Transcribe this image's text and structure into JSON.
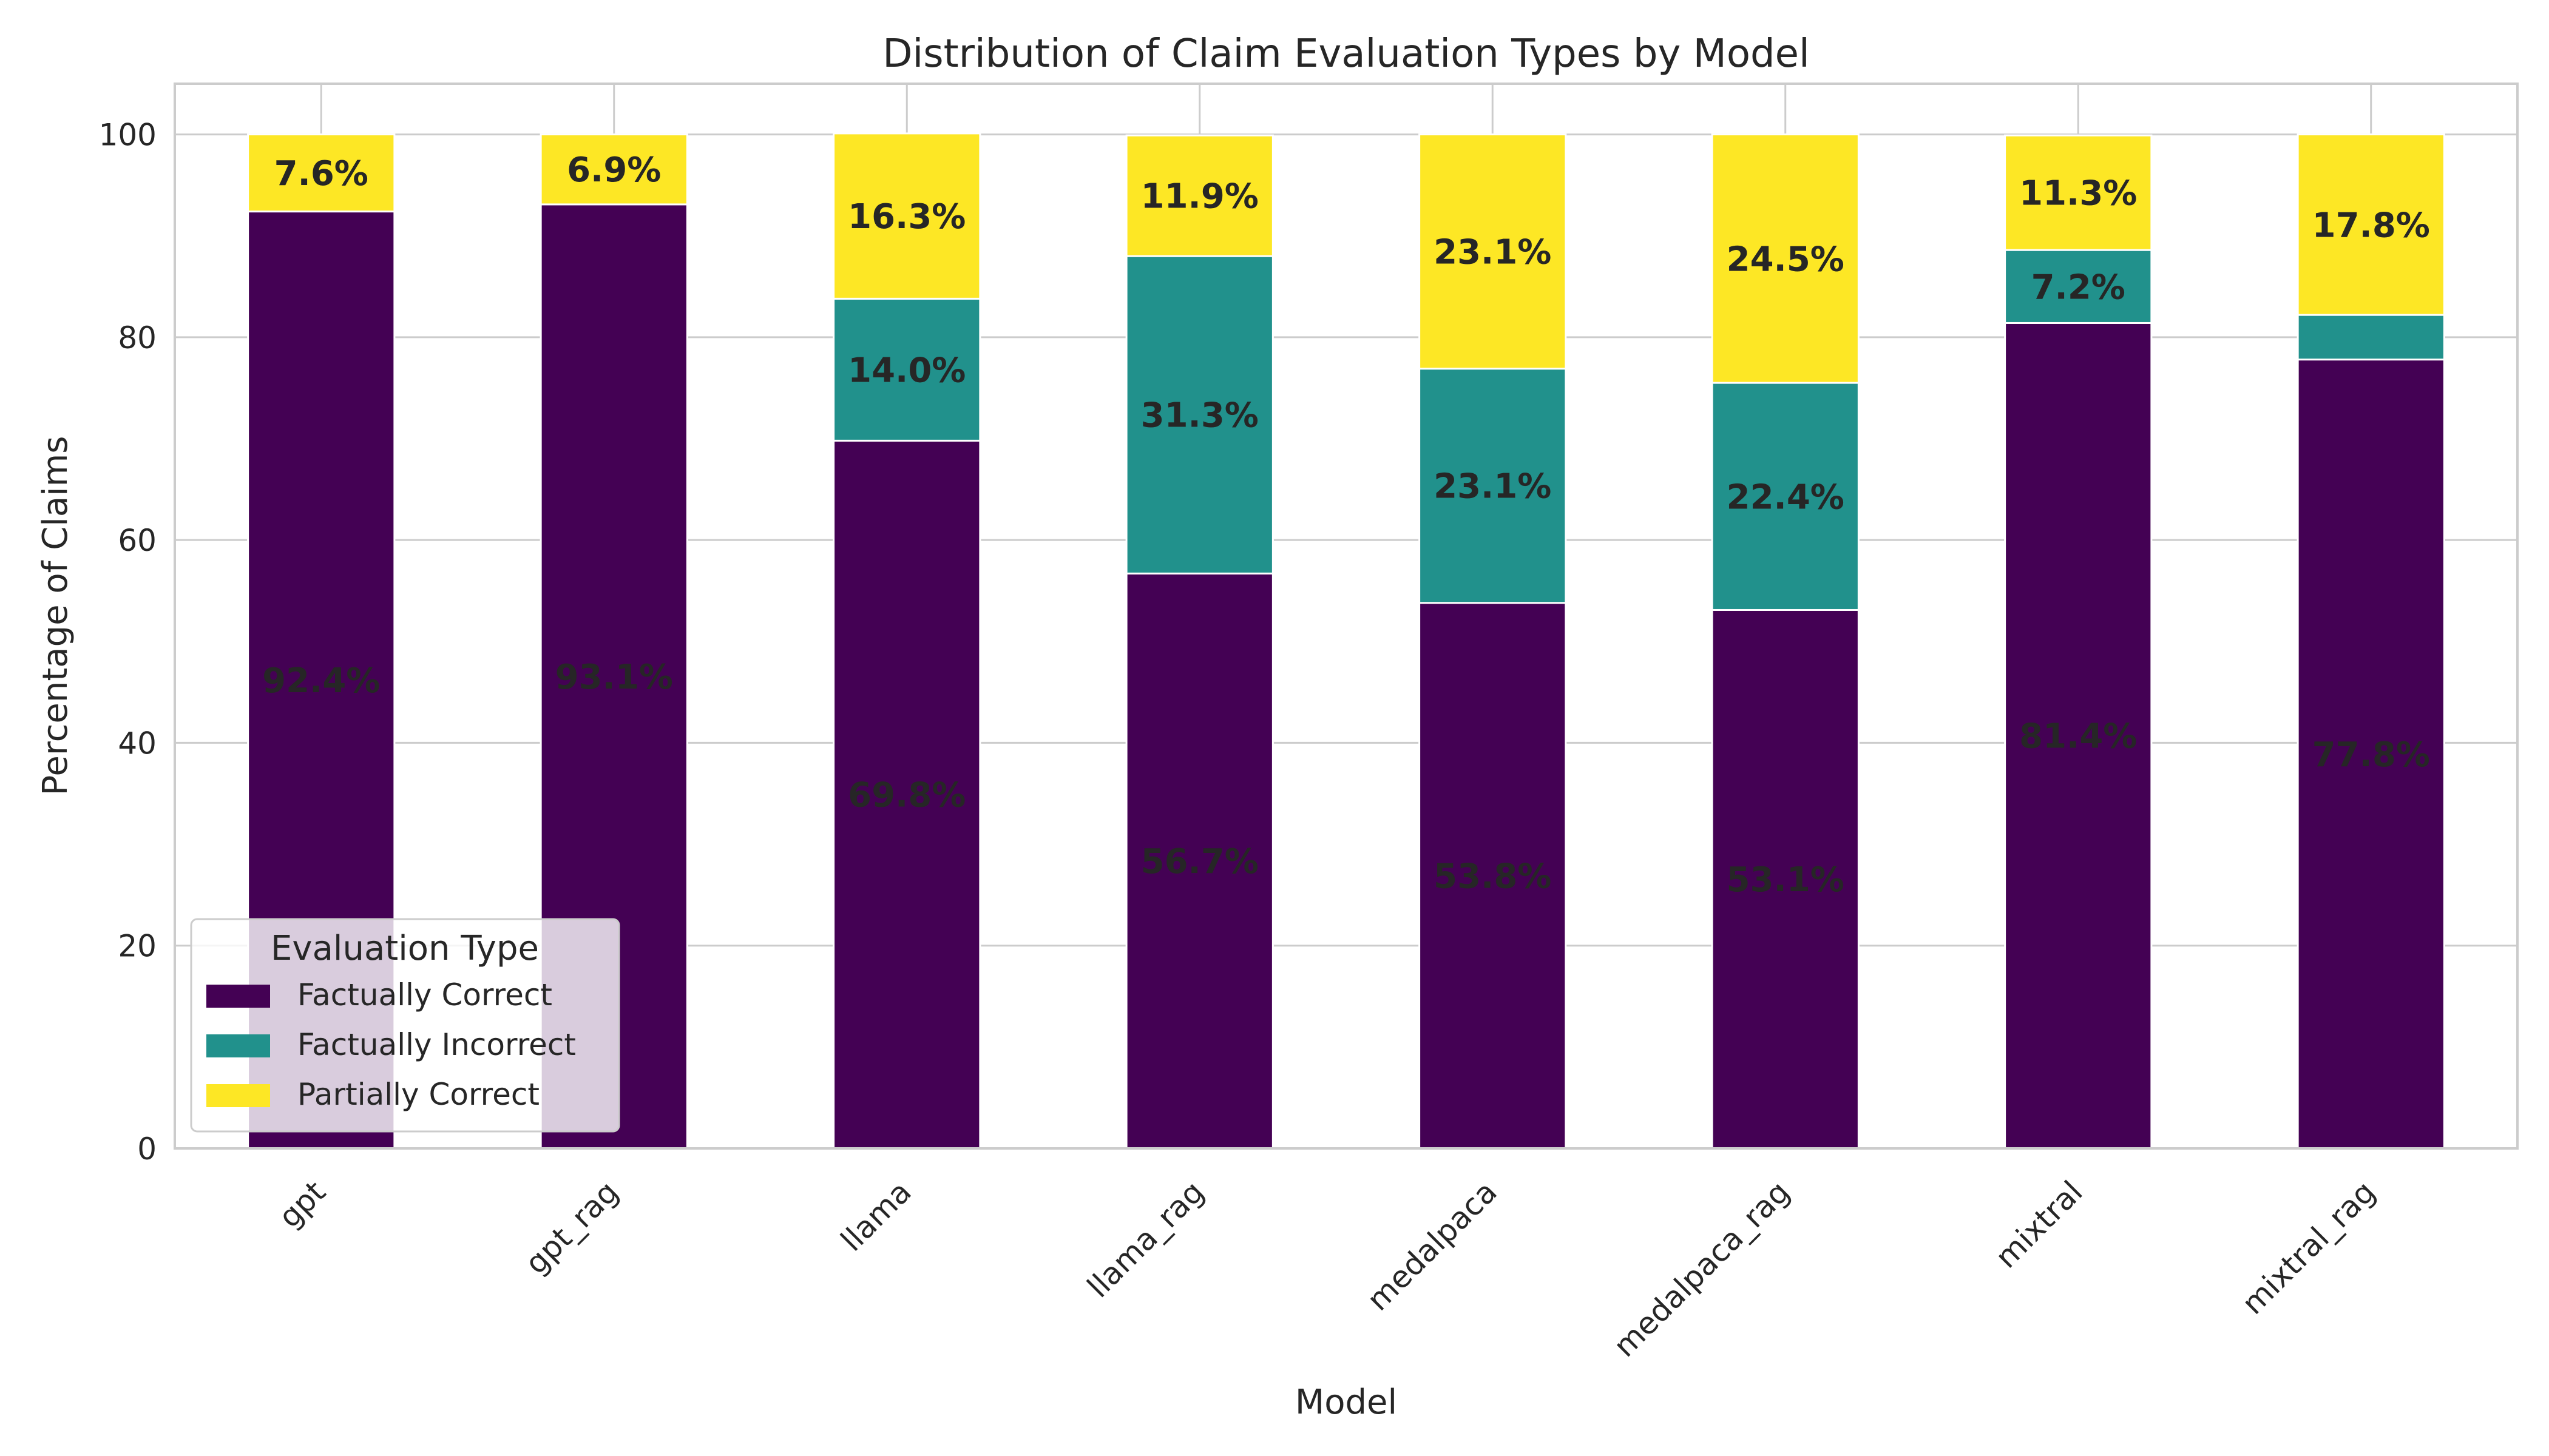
{
  "chart_data": {
    "type": "bar",
    "stacked": true,
    "title": "Distribution of Claim Evaluation Types by Model",
    "xlabel": "Model",
    "ylabel": "Percentage of Claims",
    "ylim": [
      0,
      105
    ],
    "yticks": [
      0,
      20,
      40,
      60,
      80,
      100
    ],
    "grid": true,
    "categories": [
      "gpt",
      "gpt_rag",
      "llama",
      "llama_rag",
      "medalpaca",
      "medalpaca_rag",
      "mixtral",
      "mixtral_rag"
    ],
    "series": [
      {
        "name": "Factually Correct",
        "color": "#440154",
        "values": [
          92.4,
          93.1,
          69.8,
          56.7,
          53.8,
          53.1,
          81.4,
          77.8
        ],
        "labels": [
          "92.4%",
          "93.1%",
          "69.8%",
          "56.7%",
          "53.8%",
          "53.1%",
          "81.4%",
          "77.8%"
        ]
      },
      {
        "name": "Factually Incorrect",
        "color": "#21918c",
        "values": [
          0,
          0,
          14.0,
          31.3,
          23.1,
          22.4,
          7.2,
          4.4
        ],
        "labels": [
          "",
          "",
          "14.0%",
          "31.3%",
          "23.1%",
          "22.4%",
          "7.2%",
          ""
        ]
      },
      {
        "name": "Partially Correct",
        "color": "#fde725",
        "values": [
          7.6,
          6.9,
          16.3,
          11.9,
          23.1,
          24.5,
          11.3,
          17.8
        ],
        "labels": [
          "7.6%",
          "6.9%",
          "16.3%",
          "11.9%",
          "23.1%",
          "24.5%",
          "11.3%",
          "17.8%"
        ]
      }
    ],
    "legend": {
      "title": "Evaluation Type",
      "position": "lower-left"
    }
  }
}
